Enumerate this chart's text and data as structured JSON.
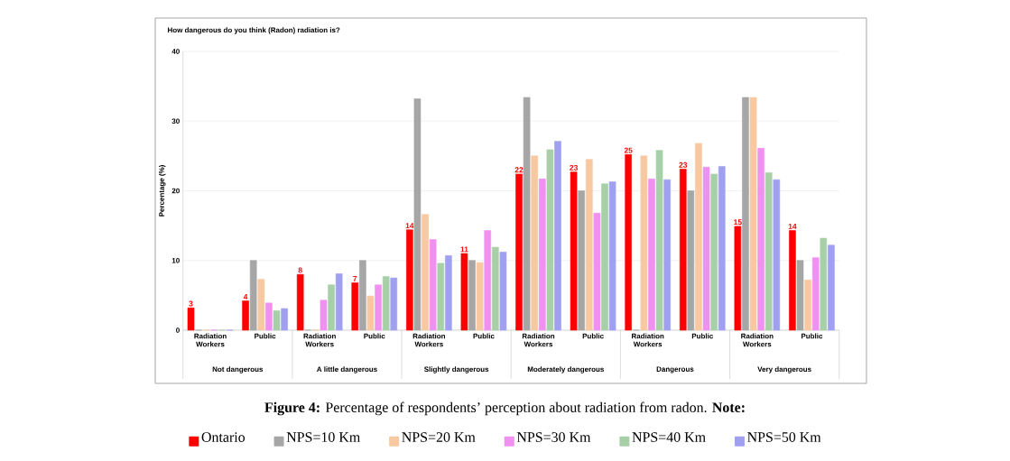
{
  "chart_data": {
    "type": "bar",
    "title": "How dangerous do you think (Radon) radiation is?",
    "ylabel": "Percentage (%)",
    "categories": [
      "Radiation Workers",
      "Public",
      "Radiation Workers",
      "Public",
      "Radiation Workers",
      "Public",
      "Radiation Workers",
      "Public",
      "Radiation Workers",
      "Public",
      "Radiation Workers",
      "Public"
    ],
    "ylim": [
      0,
      40
    ],
    "yticks": [
      0,
      10,
      20,
      30,
      40
    ],
    "grid": "y",
    "legend": "bottom",
    "annotations": [
      "Not dangerous",
      "A little dangerous",
      "Slightly dangerous",
      "Moderately dangerous",
      "Dangerous",
      "Very dangerous",
      "**Figure 4:** Percentage of respondents’ perception about radiation from radon. **Note:**"
    ],
    "series": [
      {
        "name": "Ontario",
        "color": "#ff0000",
        "values": [
          3.2,
          4.2,
          8.0,
          6.8,
          14.4,
          11.0,
          22.4,
          22.7,
          25.2,
          23.1,
          14.9,
          14.3
        ],
        "value_labels": [
          "3",
          "4",
          "8",
          "7",
          "14",
          "11",
          "22",
          "23",
          "25",
          "23",
          "15",
          "14"
        ]
      },
      {
        "name": "NPS=10 Km",
        "color": "#a6a6a6",
        "values": [
          0,
          10,
          0,
          10,
          33.2,
          10,
          33.4,
          20,
          0,
          20,
          33.4,
          10
        ]
      },
      {
        "name": "NPS=20 Km",
        "color": "#f8c8a0",
        "values": [
          0,
          7.3,
          0,
          4.9,
          16.6,
          9.7,
          25.0,
          24.5,
          25.0,
          26.8,
          33.4,
          7.2
        ]
      },
      {
        "name": "NPS=30 Km",
        "color": "#f090f0",
        "values": [
          0,
          3.9,
          4.3,
          6.5,
          13.0,
          14.3,
          21.7,
          16.8,
          21.7,
          23.4,
          26.1,
          10.4
        ]
      },
      {
        "name": "NPS=40 Km",
        "color": "#a8d0a8",
        "values": [
          0,
          2.8,
          6.5,
          7.7,
          9.6,
          11.9,
          25.9,
          21.0,
          25.8,
          22.4,
          22.6,
          13.2
        ]
      },
      {
        "name": "NPS=50 Km",
        "color": "#a0a0f0",
        "values": [
          0,
          3.1,
          8.1,
          7.5,
          10.7,
          11.2,
          27.1,
          21.3,
          21.6,
          23.5,
          21.6,
          12.2
        ]
      }
    ]
  }
}
